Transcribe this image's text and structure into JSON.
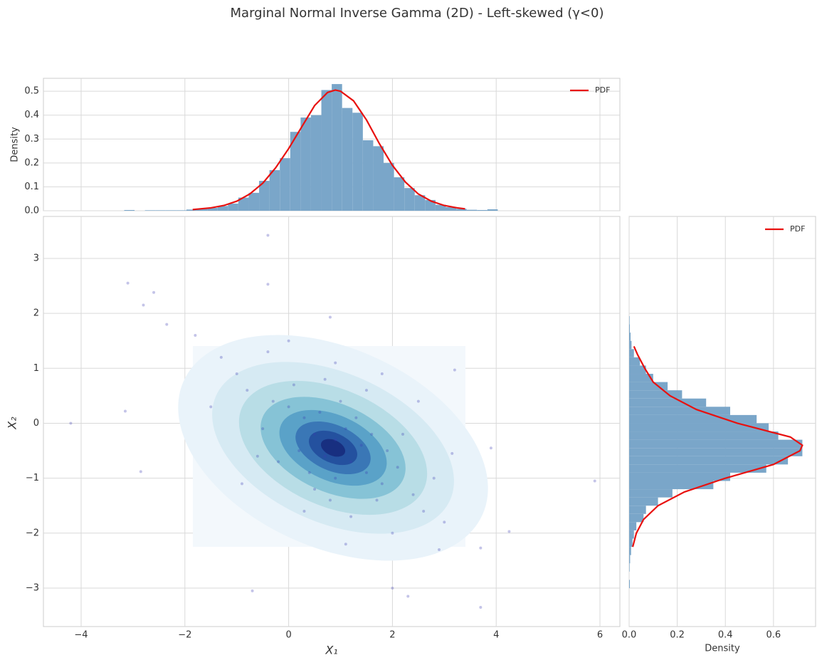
{
  "title": "Marginal Normal Inverse Gamma (2D) - Left-skewed (γ<0)",
  "chart_data": [
    {
      "type": "histogram",
      "ylabel": "Density",
      "color": "#7aa6c9",
      "bins": [
        -3.17,
        -2.97,
        -2.77,
        -2.57,
        -2.37,
        -2.17,
        -1.97,
        -1.77,
        -1.57,
        -1.37,
        -1.17,
        -0.97,
        -0.77,
        -0.57,
        -0.37,
        -0.17,
        0.03,
        0.23,
        0.43,
        0.63,
        0.83,
        1.03,
        1.23,
        1.43,
        1.63,
        1.83,
        2.03,
        2.23,
        2.43,
        2.63,
        2.83,
        3.03,
        3.23,
        3.43,
        3.63,
        3.83,
        4.03
      ],
      "values": [
        0.003,
        0,
        0.002,
        0.002,
        0.002,
        0.002,
        0.005,
        0.008,
        0.012,
        0.02,
        0.03,
        0.055,
        0.075,
        0.125,
        0.17,
        0.22,
        0.33,
        0.39,
        0.4,
        0.505,
        0.53,
        0.43,
        0.41,
        0.295,
        0.27,
        0.2,
        0.14,
        0.095,
        0.065,
        0.045,
        0.025,
        0.015,
        0.008,
        0.004,
        0.003,
        0.006
      ],
      "series": [
        {
          "name": "PDF",
          "color": "#e8110f",
          "x": [
            -1.85,
            -1.5,
            -1.25,
            -1.0,
            -0.75,
            -0.5,
            -0.25,
            0,
            0.25,
            0.5,
            0.75,
            0.9,
            1.0,
            1.25,
            1.5,
            1.75,
            2.0,
            2.25,
            2.5,
            2.75,
            3.0,
            3.25,
            3.4
          ],
          "values": [
            0.005,
            0.012,
            0.022,
            0.04,
            0.07,
            0.115,
            0.18,
            0.26,
            0.35,
            0.44,
            0.495,
            0.505,
            0.5,
            0.46,
            0.38,
            0.28,
            0.19,
            0.12,
            0.07,
            0.04,
            0.022,
            0.012,
            0.008
          ]
        }
      ],
      "legend": "upper right",
      "xlim": [
        -4.727,
        6.384
      ],
      "ylim": [
        0,
        0.554
      ],
      "yticks": [
        {
          "value": 0,
          "label": "0.0"
        },
        0.1,
        0.2,
        0.3,
        0.4,
        0.5
      ],
      "grid": true
    },
    {
      "type": "scatter",
      "xlabel": "X₁",
      "ylabel": "X₂",
      "color": "#3b3bb3",
      "x": [
        0.5,
        1.2,
        0.9,
        0.3,
        1.5,
        0.7,
        1.1,
        0.2,
        1.8,
        0.0,
        1.4,
        0.6,
        2.1,
        -0.3,
        0.9,
        1.6,
        0.4,
        1.0,
        -0.5,
        2.4,
        0.8,
        1.3,
        -0.2,
        1.9,
        0.1,
        2.6,
        -0.8,
        1.2,
        0.5,
        2.2,
        -1.0,
        0.7,
        1.7,
        -0.6,
        2.8,
        0.3,
        1.5,
        -1.3,
        2.0,
        0.9,
        -0.4,
        3.0,
        -1.5,
        1.1,
        2.5,
        -0.9,
        0.0,
        1.8,
        -1.8,
        2.9,
        -4.2,
        5.9,
        4.25,
        -3.1,
        -2.6,
        -2.8,
        -0.4,
        -0.4,
        -2.35,
        3.7,
        2.3,
        -0.7,
        2.0,
        3.15,
        3.9,
        3.7,
        -3.15,
        -2.85,
        0.8,
        3.2
      ],
      "y": [
        -0.2,
        -0.7,
        -0.3,
        0.1,
        -0.9,
        -0.6,
        -0.1,
        -0.5,
        -1.1,
        0.3,
        -0.4,
        0.2,
        -0.8,
        0.4,
        -1.0,
        -0.2,
        -0.9,
        0.4,
        -0.1,
        -1.3,
        -1.4,
        0.1,
        -0.7,
        -0.5,
        0.7,
        -1.6,
        0.6,
        -1.7,
        -1.2,
        -0.2,
        0.9,
        0.8,
        -1.4,
        -0.6,
        -1.0,
        -1.6,
        0.6,
        1.2,
        -2.0,
        1.1,
        1.3,
        -1.8,
        0.3,
        -2.2,
        0.4,
        -1.1,
        1.5,
        0.9,
        1.6,
        -2.3,
        0.0,
        -1.05,
        -1.97,
        2.55,
        2.38,
        2.15,
        3.42,
        2.53,
        1.8,
        -3.35,
        -3.15,
        -3.05,
        -3.0,
        -0.55,
        -0.45,
        -2.27,
        0.22,
        -0.88,
        1.93,
        0.97
      ],
      "xlim": [
        -4.727,
        6.384
      ],
      "ylim": [
        -3.7,
        3.764
      ],
      "xticks": [
        {
          "value": -4,
          "label": "−4"
        },
        {
          "value": -2,
          "label": "−2"
        },
        0,
        2,
        4,
        6
      ],
      "yticks": [
        {
          "value": -3,
          "label": "−3"
        },
        {
          "value": -2,
          "label": "−2"
        },
        {
          "value": -1,
          "label": "−1"
        },
        0,
        1,
        2,
        3
      ],
      "grid": true
    },
    {
      "type": "histogram",
      "orientation": "horizontal",
      "xlabel": "Density",
      "color": "#7aa6c9",
      "bins": [
        -3.0,
        -2.85,
        -2.7,
        -2.55,
        -2.4,
        -2.25,
        -2.1,
        -1.95,
        -1.8,
        -1.65,
        -1.5,
        -1.35,
        -1.2,
        -1.05,
        -0.9,
        -0.75,
        -0.6,
        -0.45,
        -0.3,
        -0.15,
        0.0,
        0.15,
        0.3,
        0.45,
        0.6,
        0.75,
        0.9,
        1.05,
        1.2,
        1.35,
        1.5,
        1.65,
        1.8,
        1.95
      ],
      "values": [
        0.003,
        0,
        0.002,
        0.004,
        0.008,
        0.014,
        0.02,
        0.03,
        0.06,
        0.07,
        0.12,
        0.18,
        0.35,
        0.42,
        0.57,
        0.66,
        0.72,
        0.72,
        0.62,
        0.58,
        0.53,
        0.42,
        0.32,
        0.22,
        0.16,
        0.1,
        0.07,
        0.045,
        0.02,
        0.01,
        0.006,
        0.003,
        0.002
      ],
      "series": [
        {
          "name": "PDF",
          "color": "#e8110f",
          "x": [
            -2.25,
            -2.0,
            -1.75,
            -1.5,
            -1.25,
            -1.0,
            -0.75,
            -0.5,
            -0.4,
            -0.25,
            0,
            0.25,
            0.5,
            0.75,
            1.0,
            1.25,
            1.4
          ],
          "values": [
            0.015,
            0.03,
            0.06,
            0.12,
            0.23,
            0.4,
            0.6,
            0.71,
            0.72,
            0.67,
            0.45,
            0.28,
            0.17,
            0.1,
            0.065,
            0.035,
            0.02
          ]
        }
      ],
      "legend": "upper right",
      "xlim": [
        0,
        0.775
      ],
      "xticks": [
        {
          "value": 0,
          "label": "0.0"
        },
        0.2,
        0.4,
        0.6
      ],
      "grid": true
    }
  ]
}
